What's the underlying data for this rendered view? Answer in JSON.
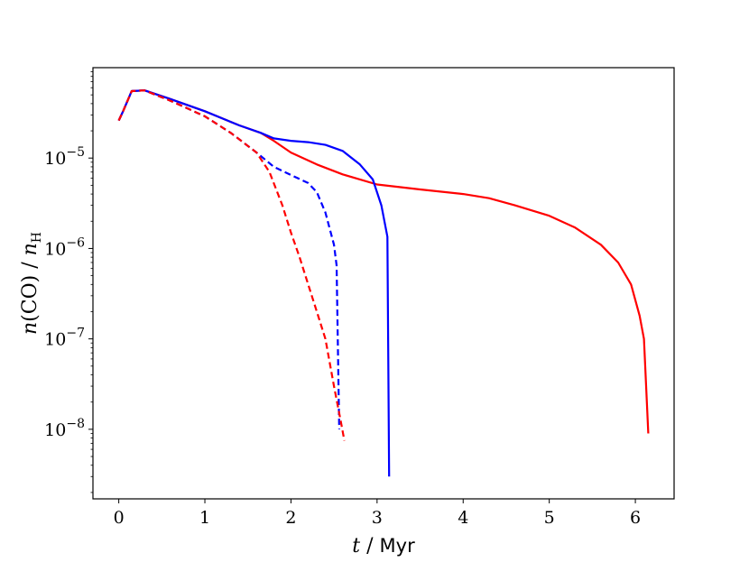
{
  "chart_data": {
    "type": "line",
    "xlabel_var": "t",
    "xlabel_unit": "Myr",
    "ylabel": "n(CO) / n_H",
    "xlim": [
      -0.3,
      6.45
    ],
    "ylim": [
      1.7e-09,
      0.0001
    ],
    "yscale": "log",
    "grid": false,
    "x_ticks": [
      0,
      1,
      2,
      3,
      4,
      5,
      6
    ],
    "y_ticks": [
      {
        "value": 1e-08,
        "base": "10",
        "exp": "−8"
      },
      {
        "value": 1e-07,
        "base": "10",
        "exp": "−7"
      },
      {
        "value": 1e-06,
        "base": "10",
        "exp": "−6"
      },
      {
        "value": 1e-05,
        "base": "10",
        "exp": "−5"
      }
    ],
    "series": [
      {
        "color": "#ff0000",
        "linestyle": "solid",
        "points": [
          [
            0,
            2.6e-05
          ],
          [
            0.05,
            3.3e-05
          ],
          [
            0.15,
            5.5e-05
          ],
          [
            0.3,
            5.6e-05
          ],
          [
            0.6,
            4.5e-05
          ],
          [
            1.0,
            3.3e-05
          ],
          [
            1.4,
            2.3e-05
          ],
          [
            1.65,
            1.9e-05
          ],
          [
            1.8,
            1.55e-05
          ],
          [
            2.0,
            1.15e-05
          ],
          [
            2.3,
            8.5e-06
          ],
          [
            2.6,
            6.6e-06
          ],
          [
            3.0,
            5.1e-06
          ],
          [
            3.5,
            4.5e-06
          ],
          [
            4.0,
            4e-06
          ],
          [
            4.3,
            3.6e-06
          ],
          [
            4.6,
            3e-06
          ],
          [
            5.0,
            2.3e-06
          ],
          [
            5.3,
            1.7e-06
          ],
          [
            5.6,
            1.1e-06
          ],
          [
            5.8,
            7e-07
          ],
          [
            5.95,
            4e-07
          ],
          [
            6.05,
            1.8e-07
          ],
          [
            6.1,
            1e-07
          ],
          [
            6.15,
            9e-09
          ]
        ]
      },
      {
        "color": "#0000ff",
        "linestyle": "solid",
        "points": [
          [
            0,
            2.6e-05
          ],
          [
            0.05,
            3.3e-05
          ],
          [
            0.15,
            5.5e-05
          ],
          [
            0.3,
            5.6e-05
          ],
          [
            0.6,
            4.5e-05
          ],
          [
            1.0,
            3.3e-05
          ],
          [
            1.4,
            2.3e-05
          ],
          [
            1.65,
            1.9e-05
          ],
          [
            1.8,
            1.65e-05
          ],
          [
            2.0,
            1.55e-05
          ],
          [
            2.2,
            1.5e-05
          ],
          [
            2.4,
            1.4e-05
          ],
          [
            2.6,
            1.2e-05
          ],
          [
            2.8,
            8.5e-06
          ],
          [
            2.95,
            5.8e-06
          ],
          [
            3.05,
            3e-06
          ],
          [
            3.12,
            1.35e-06
          ],
          [
            3.14,
            3e-09
          ]
        ]
      },
      {
        "color": "#0000ff",
        "linestyle": "dashed",
        "points": [
          [
            0,
            2.6e-05
          ],
          [
            0.05,
            3.3e-05
          ],
          [
            0.15,
            5.5e-05
          ],
          [
            0.3,
            5.6e-05
          ],
          [
            0.6,
            4.3e-05
          ],
          [
            1.0,
            2.9e-05
          ],
          [
            1.3,
            1.9e-05
          ],
          [
            1.6,
            1.15e-05
          ],
          [
            1.8,
            8e-06
          ],
          [
            2.0,
            6.5e-06
          ],
          [
            2.2,
            5.3e-06
          ],
          [
            2.3,
            4.2e-06
          ],
          [
            2.4,
            2.5e-06
          ],
          [
            2.5,
            1.1e-06
          ],
          [
            2.53,
            6.5e-07
          ],
          [
            2.56,
            1e-08
          ]
        ]
      },
      {
        "color": "#ff0000",
        "linestyle": "dashed",
        "points": [
          [
            0,
            2.6e-05
          ],
          [
            0.05,
            3.3e-05
          ],
          [
            0.15,
            5.5e-05
          ],
          [
            0.3,
            5.6e-05
          ],
          [
            0.6,
            4.3e-05
          ],
          [
            1.0,
            2.9e-05
          ],
          [
            1.3,
            1.9e-05
          ],
          [
            1.6,
            1.15e-05
          ],
          [
            1.75,
            7e-06
          ],
          [
            1.9,
            3e-06
          ],
          [
            2.0,
            1.5e-06
          ],
          [
            2.1,
            8e-07
          ],
          [
            2.2,
            4e-07
          ],
          [
            2.3,
            2e-07
          ],
          [
            2.4,
            1e-07
          ],
          [
            2.5,
            3e-08
          ],
          [
            2.58,
            1.2e-08
          ],
          [
            2.62,
            7.5e-09
          ]
        ]
      }
    ]
  }
}
